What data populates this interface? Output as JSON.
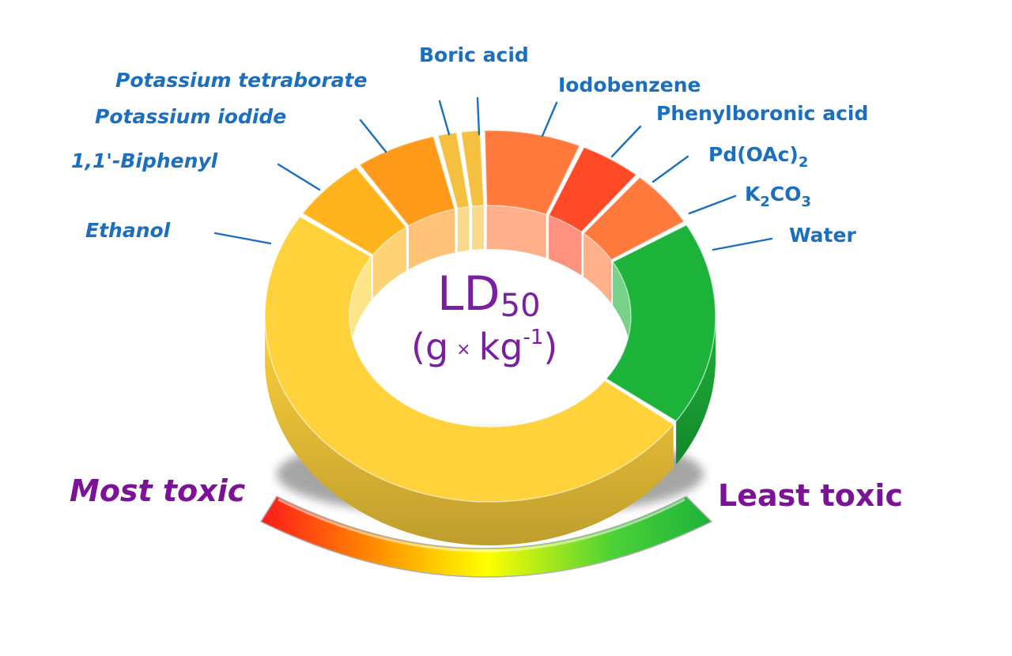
{
  "center": {
    "title_main": "LD",
    "title_sub": "50",
    "unit_open": "(g",
    "unit_times": "×",
    "unit_kg": "kg",
    "unit_exp": "-1",
    "unit_close": ")"
  },
  "labels": {
    "ethanol": "Ethanol",
    "biphenyl": "1,1'-Biphenyl",
    "potassium_iodide": "Potassium iodide",
    "potassium_tetraborate": "Potassium tetraborate",
    "boric_acid": "Boric acid",
    "iodobenzene": "Iodobenzene",
    "phenylboronic_acid": "Phenylboronic acid",
    "pdoac_pre": "Pd(OAc)",
    "pdoac_sub": "2",
    "k2co3_k": "K",
    "k2co3_sub1": "2",
    "k2co3_co": "CO",
    "k2co3_sub2": "3",
    "water": "Water"
  },
  "scale": {
    "most": "Most toxic",
    "least": "Least toxic",
    "colors": [
      "#ff1a1a",
      "#ff8c00",
      "#ffff00",
      "#4cd137",
      "#1db33a"
    ]
  },
  "segment_colors": {
    "ethanol": "#ffd23c",
    "biphenyl": "#ffb41e",
    "potassium_iodide": "#ff9a1a",
    "potassium_tetraborate": "#f5c040",
    "boric_acid": "#f5c040",
    "iodobenzene": "#ff7a3c",
    "phenylboronic_acid": "#ff4a28",
    "pd_oac_2": "#ff7a3c",
    "k2co3": "#ff7a3c",
    "water": "#1db33a"
  }
}
